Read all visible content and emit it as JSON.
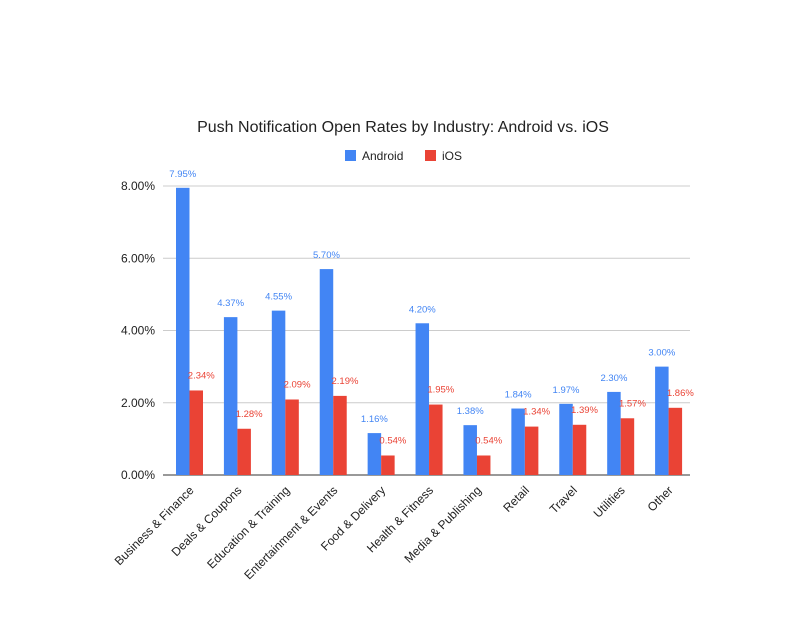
{
  "chart_data": {
    "type": "bar",
    "title": "Push Notification Open Rates by Industry: Android vs. iOS",
    "xlabel": "",
    "ylabel": "",
    "ylim": [
      0,
      8
    ],
    "y_ticks": [
      "0.00%",
      "2.00%",
      "4.00%",
      "6.00%",
      "8.00%"
    ],
    "grid": true,
    "legend_position": "top",
    "categories": [
      "Business & Finance",
      "Deals & Coupons",
      "Education & Training",
      "Entertainment & Events",
      "Food & Delivery",
      "Health & Fitness",
      "Media & Publishing",
      "Retail",
      "Travel",
      "Utilities",
      "Other"
    ],
    "series": [
      {
        "name": "Android",
        "color": "#4285f4",
        "values": [
          7.95,
          4.37,
          4.55,
          5.7,
          1.16,
          4.2,
          1.38,
          1.84,
          1.97,
          2.3,
          3.0
        ],
        "labels": [
          "7.95%",
          "4.37%",
          "4.55%",
          "5.70%",
          "1.16%",
          "4.20%",
          "1.38%",
          "1.84%",
          "1.97%",
          "2.30%",
          "3.00%"
        ]
      },
      {
        "name": "iOS",
        "color": "#ea4335",
        "values": [
          2.34,
          1.28,
          2.09,
          2.19,
          0.54,
          1.95,
          0.54,
          1.34,
          1.39,
          1.57,
          1.86
        ],
        "labels": [
          "2.34%",
          "1.28%",
          "2.09%",
          "2.19%",
          "0.54%",
          "1.95%",
          "0.54%",
          "1.34%",
          "1.39%",
          "1.57%",
          "1.86%"
        ]
      }
    ]
  }
}
